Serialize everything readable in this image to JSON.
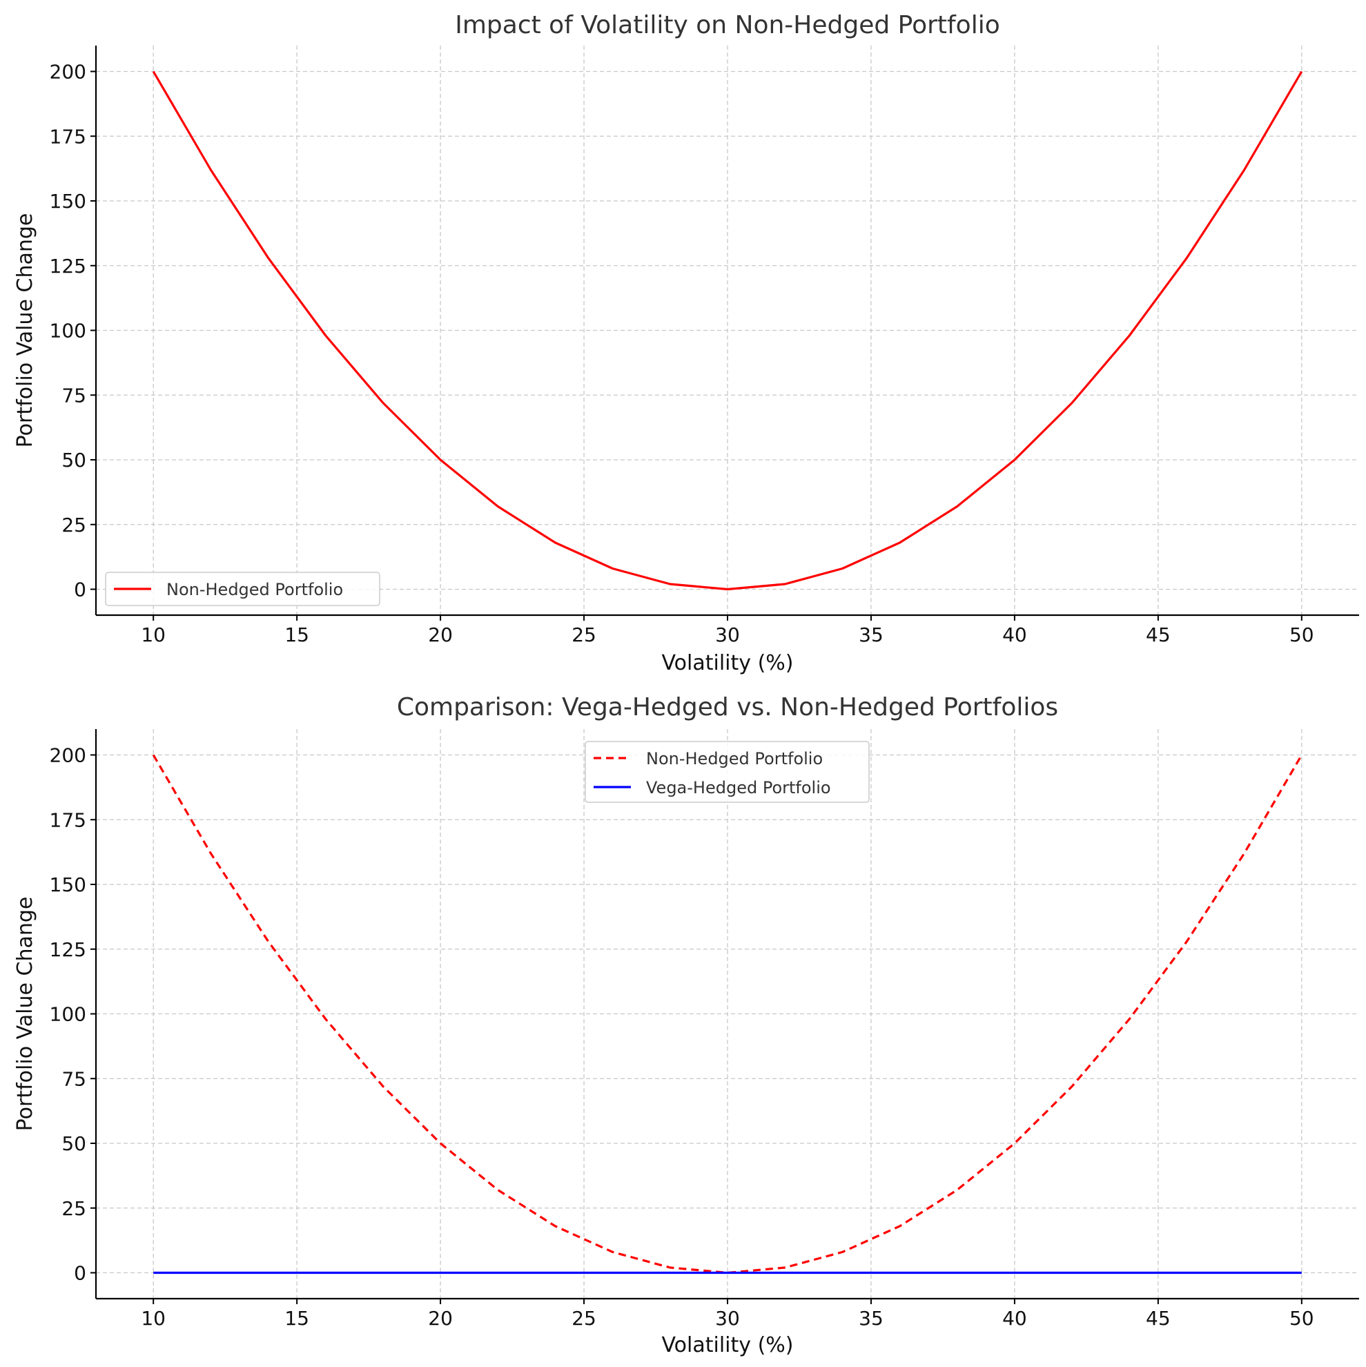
{
  "chart_data": [
    {
      "type": "line",
      "title": "Impact of Volatility on Non-Hedged Portfolio",
      "xlabel": "Volatility (%)",
      "ylabel": "Portfolio Value Change",
      "xlim": [
        8,
        52
      ],
      "ylim": [
        -10,
        210
      ],
      "xticks": [
        10,
        15,
        20,
        25,
        30,
        35,
        40,
        45,
        50
      ],
      "yticks": [
        0,
        25,
        50,
        75,
        100,
        125,
        150,
        175,
        200
      ],
      "grid": true,
      "legend_position": "lower-left",
      "series": [
        {
          "name": "Non-Hedged Portfolio",
          "color": "#ff0000",
          "style": "solid",
          "x": [
            10,
            12,
            14,
            16,
            18,
            20,
            22,
            24,
            26,
            28,
            30,
            32,
            34,
            36,
            38,
            40,
            42,
            44,
            46,
            48,
            50
          ],
          "y": [
            200,
            162,
            128,
            98,
            72,
            50,
            32,
            18,
            8,
            2,
            0,
            2,
            8,
            18,
            32,
            50,
            72,
            98,
            128,
            162,
            200
          ]
        }
      ]
    },
    {
      "type": "line",
      "title": "Comparison: Vega-Hedged vs. Non-Hedged Portfolios",
      "xlabel": "Volatility (%)",
      "ylabel": "Portfolio Value Change",
      "xlim": [
        8,
        52
      ],
      "ylim": [
        -10,
        210
      ],
      "xticks": [
        10,
        15,
        20,
        25,
        30,
        35,
        40,
        45,
        50
      ],
      "yticks": [
        0,
        25,
        50,
        75,
        100,
        125,
        150,
        175,
        200
      ],
      "grid": true,
      "legend_position": "upper-center",
      "series": [
        {
          "name": "Non-Hedged Portfolio",
          "color": "#ff0000",
          "style": "dashed",
          "x": [
            10,
            12,
            14,
            16,
            18,
            20,
            22,
            24,
            26,
            28,
            30,
            32,
            34,
            36,
            38,
            40,
            42,
            44,
            46,
            48,
            50
          ],
          "y": [
            200,
            162,
            128,
            98,
            72,
            50,
            32,
            18,
            8,
            2,
            0,
            2,
            8,
            18,
            32,
            50,
            72,
            98,
            128,
            162,
            200
          ]
        },
        {
          "name": "Vega-Hedged Portfolio",
          "color": "#0000ff",
          "style": "solid",
          "x": [
            10,
            50
          ],
          "y": [
            0,
            0
          ]
        }
      ]
    }
  ]
}
